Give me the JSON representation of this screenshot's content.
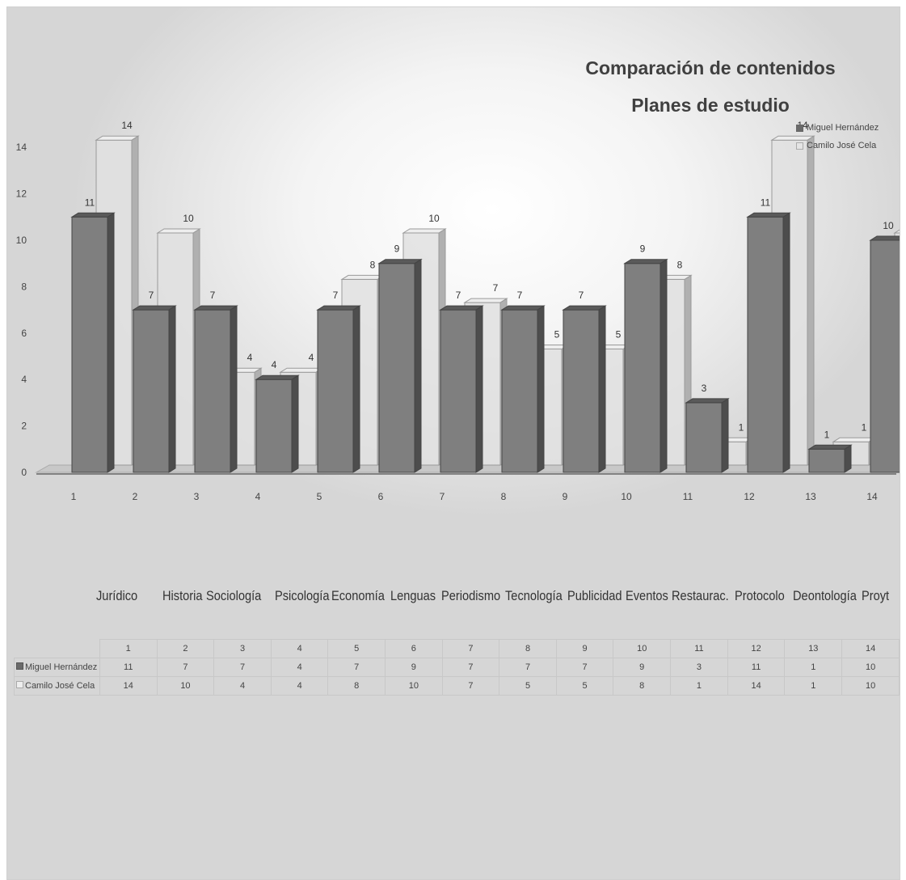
{
  "chart_data": {
    "type": "bar",
    "title": "Comparación de contenidos",
    "subtitle": "Planes de estudio",
    "categories": [
      "1",
      "2",
      "3",
      "4",
      "5",
      "6",
      "7",
      "8",
      "9",
      "10",
      "11",
      "12",
      "13",
      "14"
    ],
    "category_names": [
      "Jurídico",
      "Historia",
      "Sociología",
      "Psicología",
      "Economía",
      "Lenguas",
      "Periodismo",
      "Tecnología",
      "Publicidad",
      "Eventos",
      "Restaurac.",
      "Protocolo",
      "Deontología",
      "Proyt"
    ],
    "series": [
      {
        "name": "Miguel Hernández",
        "values": [
          11,
          7,
          7,
          4,
          7,
          9,
          7,
          7,
          7,
          9,
          3,
          11,
          1,
          10
        ]
      },
      {
        "name": "Camilo José Cela",
        "values": [
          14,
          10,
          4,
          4,
          8,
          10,
          7,
          5,
          5,
          8,
          1,
          14,
          1,
          10
        ]
      }
    ],
    "y_ticks": [
      "0",
      "2",
      "4",
      "6",
      "8",
      "10",
      "12",
      "14"
    ],
    "ylim": [
      0,
      14
    ],
    "legend_position": "top-right",
    "colors": {
      "series1": "#7f7f7f",
      "series1_dark": "#4d4d4d",
      "series2": "#dcdcdc",
      "series2_edge": "#9a9a9a"
    }
  },
  "legend": {
    "items": [
      "Miguel Hernández",
      "Camilo José Cela"
    ]
  },
  "table": {
    "header": [
      "1",
      "2",
      "3",
      "4",
      "5",
      "6",
      "7",
      "8",
      "9",
      "10",
      "11",
      "12",
      "13",
      "14"
    ],
    "rows": [
      {
        "label": "Miguel Hernández",
        "values": [
          "11",
          "7",
          "7",
          "4",
          "7",
          "9",
          "7",
          "7",
          "7",
          "9",
          "3",
          "11",
          "1",
          "10"
        ]
      },
      {
        "label": "Camilo José Cela",
        "values": [
          "14",
          "10",
          "4",
          "4",
          "8",
          "10",
          "7",
          "5",
          "5",
          "8",
          "1",
          "14",
          "1",
          "10"
        ]
      }
    ]
  }
}
